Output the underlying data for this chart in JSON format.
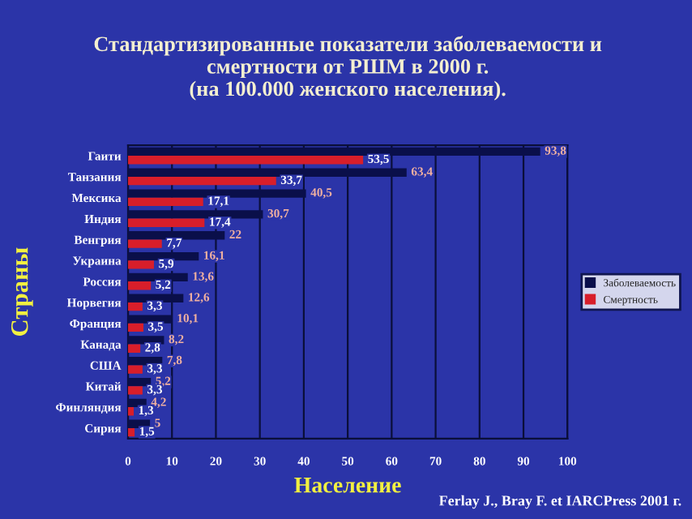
{
  "chart_data": {
    "type": "bar",
    "orientation": "horizontal",
    "title": "Стандартизированные показатели заболеваемости и\nсмертности от РШМ в 2000 г.\n(на 100.000 женского населения).",
    "xlabel": "Население",
    "ylabel": "Страны",
    "categories": [
      "Гаити",
      "Танзания",
      "Мексика",
      "Индия",
      "Венгрия",
      "Украина",
      "Россия",
      "Норвегия",
      "Франция",
      "Канада",
      "США",
      "Китай",
      "Финляндия",
      "Сирия"
    ],
    "series": [
      {
        "name": "Заболеваемость",
        "color": "#0a0f4a",
        "values": [
          93.8,
          63.4,
          40.5,
          30.7,
          22,
          16.1,
          13.6,
          12.6,
          10.1,
          8.2,
          7.8,
          5.2,
          4.2,
          5
        ],
        "value_labels": [
          "93,8",
          "63,4",
          "40,5",
          "30,7",
          "22",
          "16,1",
          "13,6",
          "12,6",
          "10,1",
          "8,2",
          "7,8",
          "5,2",
          "4,2",
          "5"
        ]
      },
      {
        "name": "Смертность",
        "color": "#d81e2a",
        "values": [
          53.5,
          33.7,
          17.1,
          17.4,
          7.7,
          5.9,
          5.2,
          3.3,
          3.5,
          2.8,
          3.3,
          3.3,
          1.3,
          1.5
        ],
        "value_labels": [
          "53,5",
          "33,7",
          "17,1",
          "17,4",
          "7,7",
          "5,9",
          "5,2",
          "3,3",
          "3,5",
          "2,8",
          "3,3",
          "3,3",
          "1,3",
          "1,5"
        ]
      }
    ],
    "xlim": [
      0,
      100
    ],
    "xticks": [
      0,
      10,
      20,
      30,
      40,
      50,
      60,
      70,
      80,
      90,
      100
    ],
    "grid": "x",
    "legend": "right",
    "annotations": [
      "Ferlay J., Bray F. et IARCPress 2001 г."
    ]
  }
}
